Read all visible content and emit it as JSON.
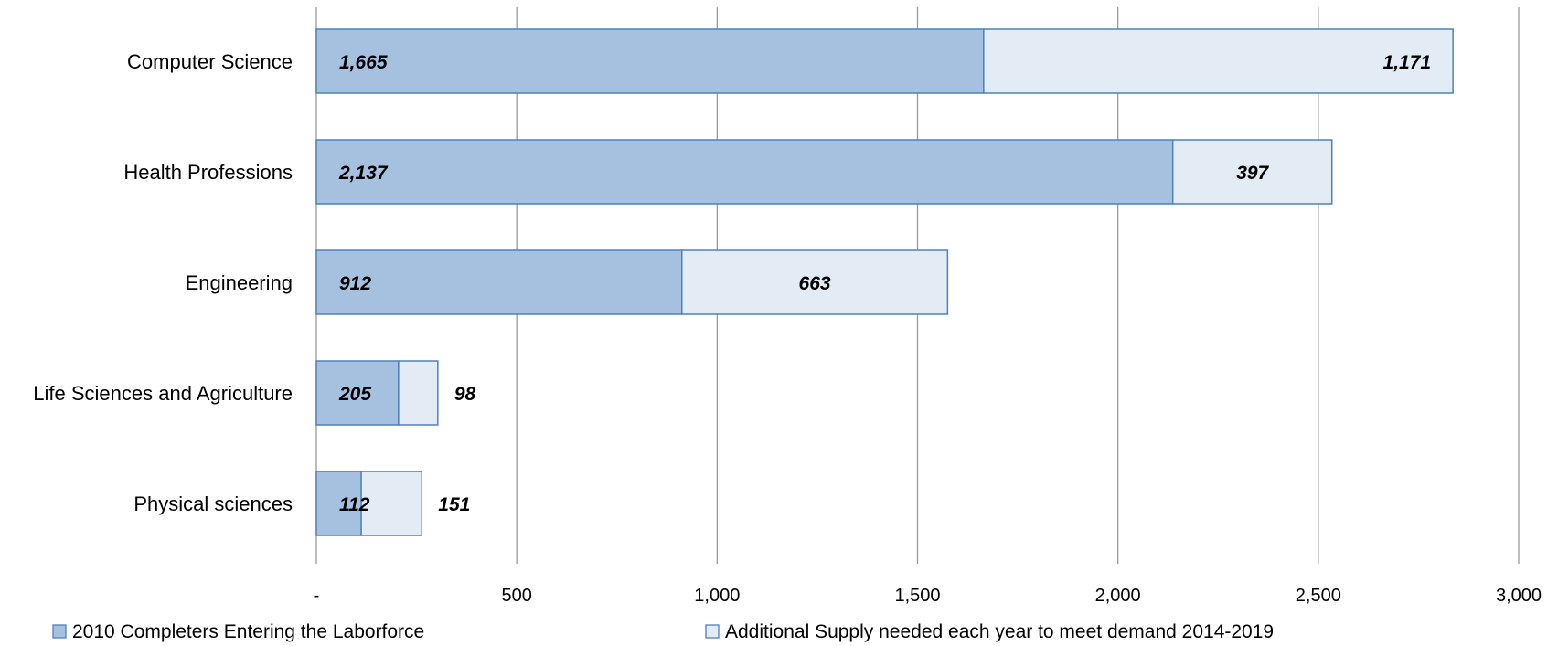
{
  "chart_data": {
    "type": "bar",
    "orientation": "horizontal",
    "stacked": true,
    "title": "",
    "xlabel": "",
    "ylabel": "",
    "xlim": [
      0,
      3000
    ],
    "grid": "vertical",
    "legend_position": "bottom",
    "categories": [
      "Computer Science",
      "Health Professions",
      "Engineering",
      "Life Sciences and Agriculture",
      "Physical sciences"
    ],
    "x_ticks": [
      0,
      500,
      1000,
      1500,
      2000,
      2500,
      3000
    ],
    "x_tick_labels": [
      "-",
      "500",
      "1,000",
      "1,500",
      "2,000",
      "2,500",
      "3,000"
    ],
    "series": [
      {
        "name": "2010 Completers Entering the Laborforce",
        "values": [
          1665,
          2137,
          912,
          205,
          112
        ],
        "labels": [
          "1,665",
          "2,137",
          "912",
          "205",
          "112"
        ],
        "fill": "#a6c0e0",
        "stroke": "#4f81bd"
      },
      {
        "name": "Additional Supply needed each year to meet demand 2014-2019",
        "values": [
          1171,
          397,
          663,
          98,
          151
        ],
        "labels": [
          "1,171",
          "397",
          "663",
          "98",
          "151"
        ],
        "fill": "#e3ebf5",
        "stroke": "#4f81bd"
      }
    ]
  }
}
